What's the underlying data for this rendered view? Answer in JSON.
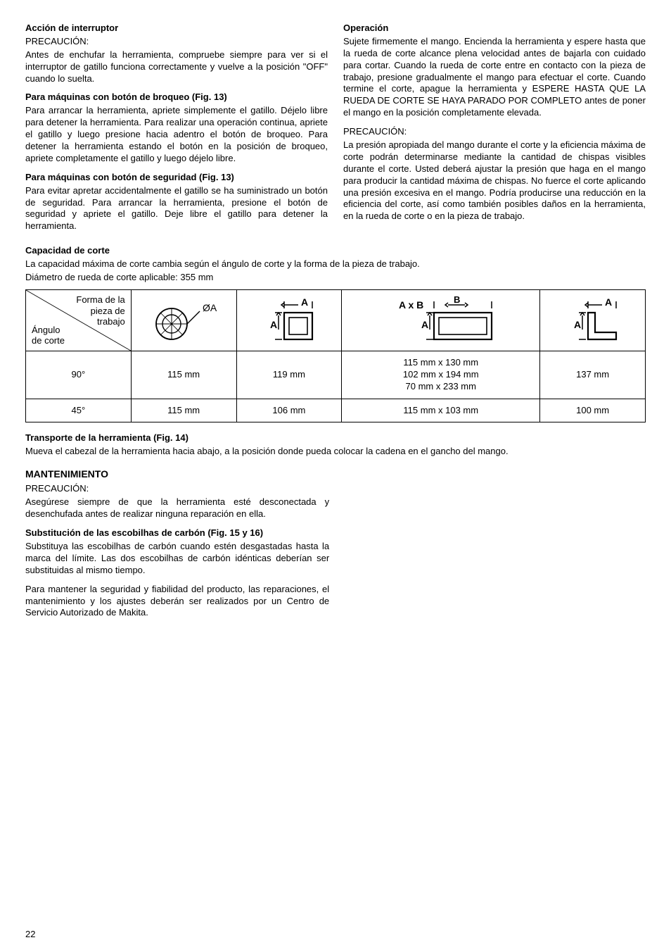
{
  "left": {
    "h1": "Acción de interruptor",
    "caution": "PRECAUCIÓN:",
    "p1": "Antes de enchufar la herramienta, compruebe siempre para ver si el interruptor de gatillo funciona correctamente y vuelve a la posición \"OFF\" cuando lo suelta.",
    "sub1": "Para máquinas con botón de broqueo (Fig. 13)",
    "p2": "Para arrancar la herramienta, apriete simplemente el gatillo. Déjelo libre para detener la herramienta. Para realizar una operación continua, apriete el gatillo y luego presione hacia adentro el botón de broqueo. Para detener la herramienta estando el botón en la posición de broqueo, apriete completamente el gatillo y luego déjelo libre.",
    "sub2": "Para máquinas con botón de seguridad (Fig. 13)",
    "p3": "Para evitar apretar accidentalmente el gatillo se ha suministrado un botón de seguridad. Para arrancar la herramienta, presione el botón de seguridad y apriete el gatillo. Deje libre el gatillo para detener la herramienta."
  },
  "right": {
    "h1": "Operación",
    "p1": "Sujete firmemente el mango. Encienda la herramienta y espere hasta que la rueda de corte alcance plena velocidad antes de bajarla con cuidado para cortar. Cuando la rueda de corte entre en contacto con la pieza de trabajo, presione gradualmente el mango para efectuar el corte. Cuando termine el corte, apague la herramienta y ESPERE HASTA QUE LA RUEDA DE CORTE SE HAYA PARADO POR COMPLETO antes de poner el mango en la posición completamente elevada.",
    "caution": "PRECAUCIÓN:",
    "p2": "La presión apropiada del mango durante el corte y la eficiencia máxima de corte podrán determinarse mediante la cantidad de chispas visibles durante el corte. Usted deberá ajustar la presión que haga en el mango para producir la cantidad máxima de chispas. No fuerce el corte aplicando una presión excesiva en el mango. Podría producirse una reducción en la eficiencia del corte, así como también posibles daños en la herramienta, en la rueda de corte o en la pieza de trabajo."
  },
  "capacity": {
    "h1": "Capacidad de corte",
    "intro1": "La capacidad máxima de corte cambia según el ángulo de corte y la forma de la pieza de trabajo.",
    "intro2": "Diámetro de rueda de corte aplicable: 355 mm",
    "header_top": "Forma de la\npieza de\ntrabajo",
    "header_bottom": "Ángulo\nde corte",
    "oa_label": "ØA",
    "a_label": "A",
    "ab_label": "A x B",
    "b_label": "B",
    "rows": [
      {
        "angle": "90°",
        "c1": "115 mm",
        "c2": "119 mm",
        "c3": "115 mm x 130 mm\n102 mm x 194 mm\n70 mm x 233 mm",
        "c4": "137 mm"
      },
      {
        "angle": "45°",
        "c1": "115 mm",
        "c2": "106 mm",
        "c3": "115 mm x 103 mm",
        "c4": "100 mm"
      }
    ]
  },
  "transport": {
    "h1": "Transporte de la herramienta (Fig. 14)",
    "p1": "Mueva el cabezal de la herramienta hacia abajo, a la posición donde pueda colocar la cadena en el gancho del mango."
  },
  "maint": {
    "h1": "MANTENIMIENTO",
    "caution": "PRECAUCIÓN:",
    "p1": "Asegúrese siempre de que la herramienta esté desconectada y desenchufada antes de realizar ninguna reparación en ella.",
    "sub1": "Substitución de las escobilhas de carbón (Fig. 15 y 16)",
    "p2": "Substituya las escobilhas de carbón cuando estén desgastadas hasta la marca del límite. Las dos escobilhas de carbón idénticas deberían ser substituidas al mismo tiempo.",
    "p3": "Para mantener la seguridad y fiabilidad del producto, las reparaciones, el mantenimiento y los ajustes deberán ser realizados por un Centro de Servicio Autorizado de Makita."
  },
  "page": "22",
  "colors": {
    "stroke": "#000000",
    "bg": "#ffffff"
  },
  "table_widths": [
    "17%",
    "17%",
    "17%",
    "32%",
    "17%"
  ]
}
